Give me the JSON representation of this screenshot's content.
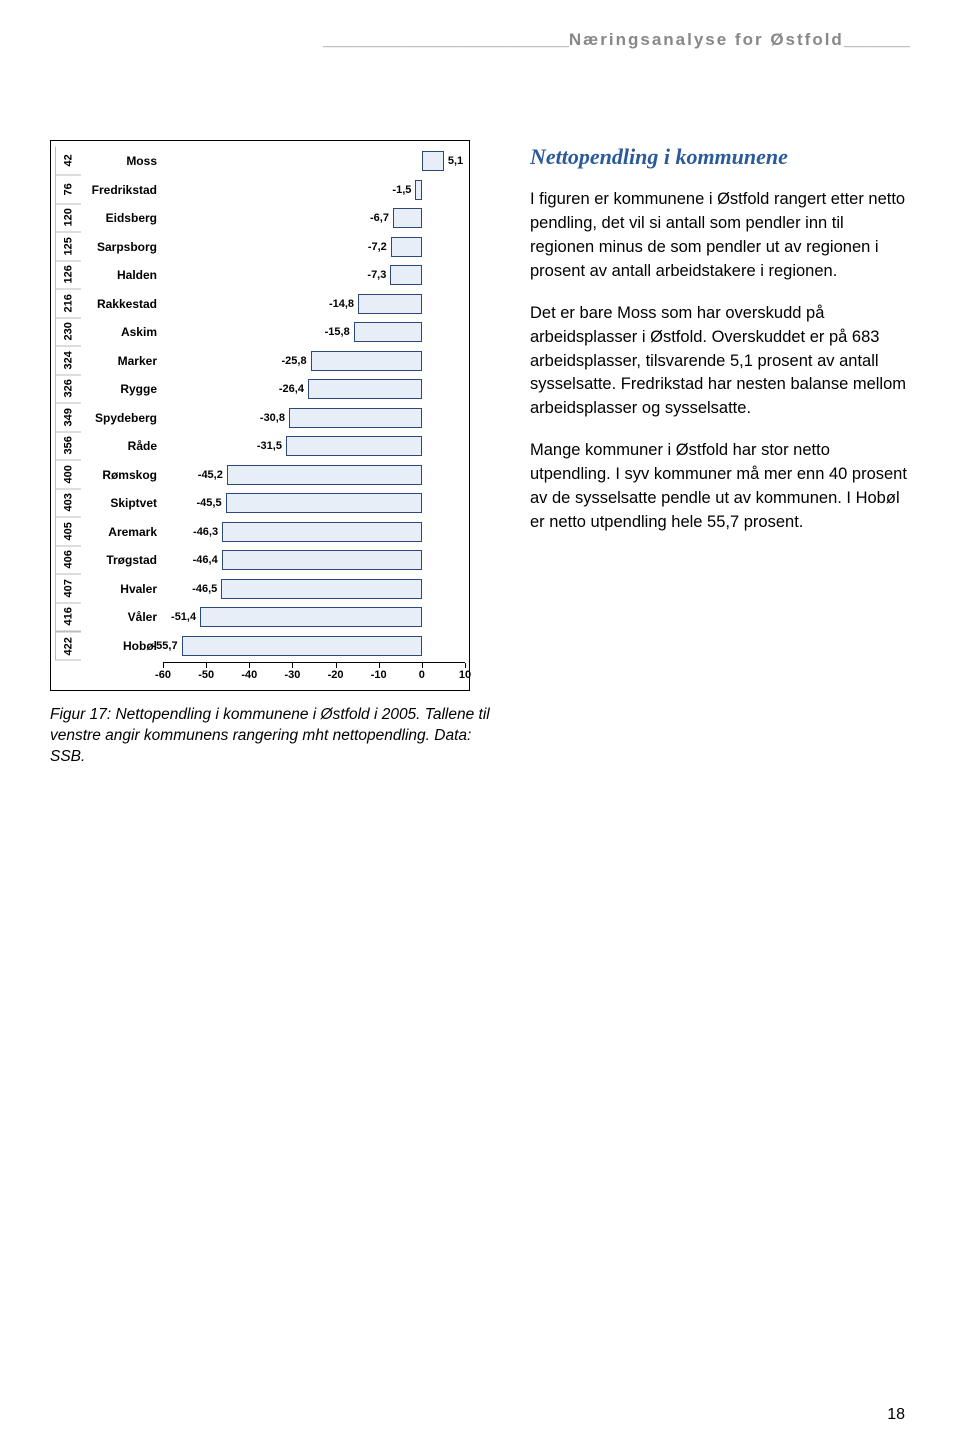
{
  "header": {
    "title": "Næringsanalyse for Østfold"
  },
  "chart": {
    "type": "bar-horizontal",
    "xmin": -60,
    "xmax": 10,
    "xticks": [
      -60,
      -50,
      -40,
      -30,
      -20,
      -10,
      0,
      10
    ],
    "bar_fill": "#e8eef8",
    "bar_border": "#2a4a7a",
    "rows": [
      {
        "rank": "42",
        "name": "Moss",
        "value": 5.1,
        "label": "5,1"
      },
      {
        "rank": "76",
        "name": "Fredrikstad",
        "value": -1.5,
        "label": "-1,5"
      },
      {
        "rank": "120",
        "name": "Eidsberg",
        "value": -6.7,
        "label": "-6,7"
      },
      {
        "rank": "125",
        "name": "Sarpsborg",
        "value": -7.2,
        "label": "-7,2"
      },
      {
        "rank": "126",
        "name": "Halden",
        "value": -7.3,
        "label": "-7,3"
      },
      {
        "rank": "216",
        "name": "Rakkestad",
        "value": -14.8,
        "label": "-14,8"
      },
      {
        "rank": "230",
        "name": "Askim",
        "value": -15.8,
        "label": "-15,8"
      },
      {
        "rank": "324",
        "name": "Marker",
        "value": -25.8,
        "label": "-25,8"
      },
      {
        "rank": "326",
        "name": "Rygge",
        "value": -26.4,
        "label": "-26,4"
      },
      {
        "rank": "349",
        "name": "Spydeberg",
        "value": -30.8,
        "label": "-30,8"
      },
      {
        "rank": "356",
        "name": "Råde",
        "value": -31.5,
        "label": "-31,5"
      },
      {
        "rank": "400",
        "name": "Rømskog",
        "value": -45.2,
        "label": "-45,2"
      },
      {
        "rank": "403",
        "name": "Skiptvet",
        "value": -45.5,
        "label": "-45,5"
      },
      {
        "rank": "405",
        "name": "Aremark",
        "value": -46.3,
        "label": "-46,3"
      },
      {
        "rank": "406",
        "name": "Trøgstad",
        "value": -46.4,
        "label": "-46,4"
      },
      {
        "rank": "407",
        "name": "Hvaler",
        "value": -46.5,
        "label": "-46,5"
      },
      {
        "rank": "416",
        "name": "Våler",
        "value": -51.4,
        "label": "-51,4"
      },
      {
        "rank": "422",
        "name": "Hobøl",
        "value": -55.7,
        "label": "-55,7"
      }
    ]
  },
  "caption": "Figur 17: Nettopendling i kommunene i Østfold i 2005. Tallene til venstre angir kommunens rangering mht nettopendling. Data: SSB.",
  "section": {
    "title": "Nettopendling i kommunene",
    "p1": "I figuren er kommunene i Østfold rangert etter netto pendling, det vil si antall som pendler inn til regionen minus de som pendler ut av regionen i prosent av antall arbeidstakere i regionen.",
    "p2": "Det er bare Moss som har overskudd på arbeidsplasser i Østfold. Overskuddet er på 683 arbeidsplasser, tilsvarende 5,1 prosent av antall sysselsatte. Fredrikstad har nesten balanse mellom arbeidsplasser og sysselsatte.",
    "p3": "Mange kommuner i Østfold har stor netto utpendling. I syv kommuner må mer enn 40 prosent av de sysselsatte pendle ut av kommunen. I Hobøl er netto utpendling hele 55,7 prosent."
  },
  "page_number": "18"
}
